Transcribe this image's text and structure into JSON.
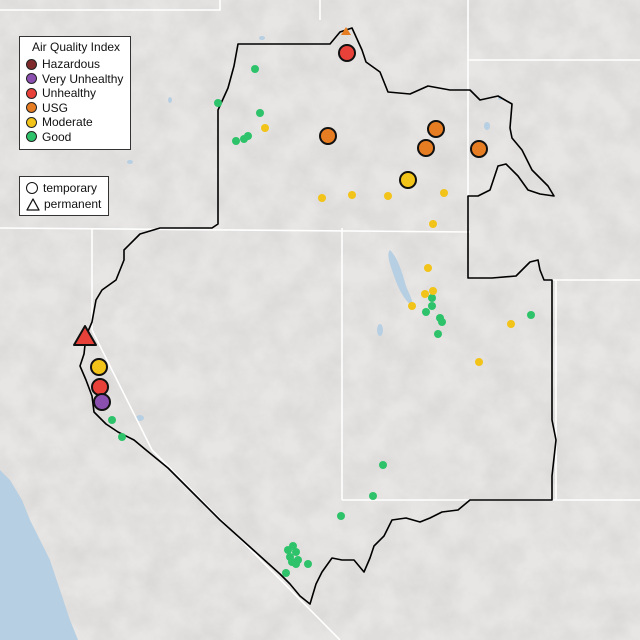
{
  "legend": {
    "title": "Air Quality Index",
    "categories": [
      {
        "label": "Hazardous",
        "color": "#7e2a2a"
      },
      {
        "label": "Very Unhealthy",
        "color": "#8b4fb0"
      },
      {
        "label": "Unhealthy",
        "color": "#e8413a"
      },
      {
        "label": "USG",
        "color": "#e77d22"
      },
      {
        "label": "Moderate",
        "color": "#f2c318"
      },
      {
        "label": "Good",
        "color": "#2ec36a"
      }
    ]
  },
  "type_legend": {
    "items": [
      {
        "label": "temporary",
        "shape": "circle"
      },
      {
        "label": "permanent",
        "shape": "triangle"
      }
    ]
  },
  "colors": {
    "land": "#e6e4e2",
    "water": "#b7cfe2",
    "state_lines": "#ffffff",
    "region_outline": "#000000"
  }
}
